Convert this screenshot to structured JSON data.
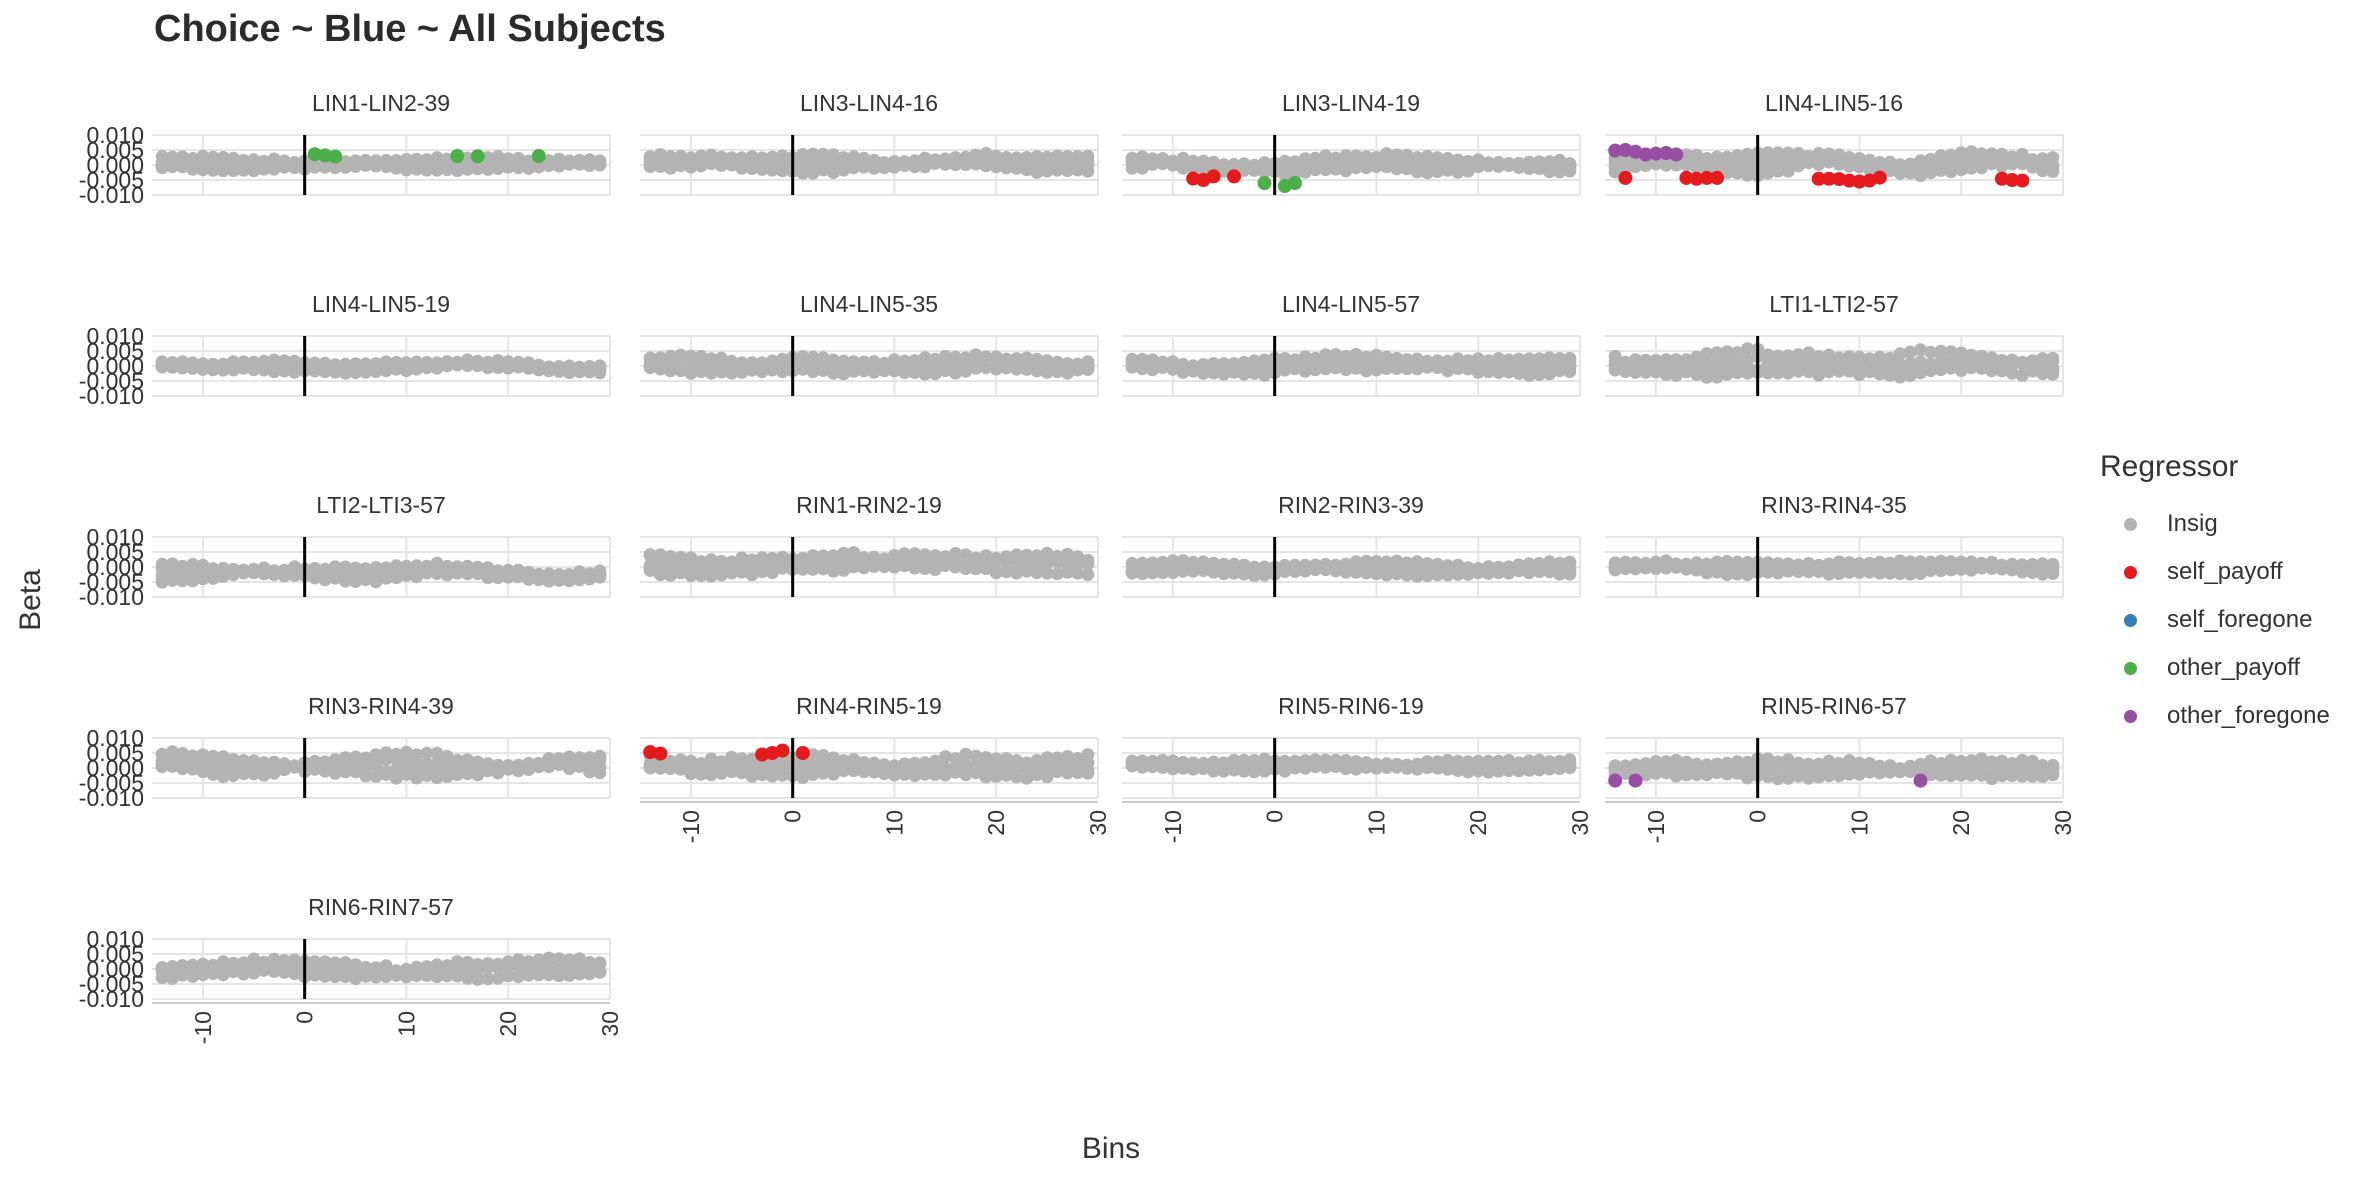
{
  "figure": {
    "title": "Choice ~ Blue ~ All Subjects",
    "xlabel": "Bins",
    "ylabel": "Beta",
    "legend_title": "Regressor"
  },
  "legend": [
    {
      "name": "Insig",
      "color": "#b3b3b3"
    },
    {
      "name": "self_payoff",
      "color": "#e41a1c"
    },
    {
      "name": "self_foregone",
      "color": "#377eb8"
    },
    {
      "name": "other_payoff",
      "color": "#4daf4a"
    },
    {
      "name": "other_foregone",
      "color": "#984ea3"
    }
  ],
  "chart_data": {
    "type": "scatter",
    "layout": "facet-grid-4-columns",
    "x_range": [
      -14,
      29
    ],
    "xlim": [
      -15,
      30
    ],
    "ylim": [
      -0.01,
      0.01
    ],
    "x_ticks": [
      -10,
      0,
      10,
      20,
      30
    ],
    "x_tick_labels": [
      "-10",
      "0",
      "10",
      "20",
      "30"
    ],
    "y_ticks": [
      0.01,
      0.005,
      0,
      -0.005,
      -0.01
    ],
    "y_tick_labels": [
      "0.010",
      "0.005",
      "0.000",
      "-0.005",
      "-0.010"
    ],
    "vline_x": 0,
    "grid": true,
    "legend_position": "right",
    "n_lines_per_panel": 5,
    "panels": [
      {
        "title": "LIN1-LIN2-39",
        "amp": 0.0022,
        "base": 0.0008,
        "sig": [
          {
            "x": 1,
            "y": 0.0036,
            "reg": "other_payoff"
          },
          {
            "x": 2,
            "y": 0.0032,
            "reg": "other_payoff"
          },
          {
            "x": 3,
            "y": 0.0028,
            "reg": "other_payoff"
          },
          {
            "x": 15,
            "y": 0.003,
            "reg": "other_payoff"
          },
          {
            "x": 17,
            "y": 0.0029,
            "reg": "other_payoff"
          },
          {
            "x": 23,
            "y": 0.003,
            "reg": "other_payoff"
          }
        ]
      },
      {
        "title": "LIN3-LIN4-16",
        "amp": 0.0025,
        "base": 0.001,
        "sig": []
      },
      {
        "title": "LIN3-LIN4-19",
        "amp": 0.0028,
        "base": 0.0,
        "sig": [
          {
            "x": -8,
            "y": -0.0045,
            "reg": "self_payoff"
          },
          {
            "x": -7,
            "y": -0.005,
            "reg": "self_payoff"
          },
          {
            "x": -6,
            "y": -0.0038,
            "reg": "self_payoff"
          },
          {
            "x": -4,
            "y": -0.0038,
            "reg": "self_payoff"
          },
          {
            "x": -1,
            "y": -0.006,
            "reg": "other_payoff"
          },
          {
            "x": 1,
            "y": -0.007,
            "reg": "other_payoff"
          },
          {
            "x": 2,
            "y": -0.006,
            "reg": "other_payoff"
          }
        ]
      },
      {
        "title": "LIN4-LIN5-16",
        "amp": 0.0033,
        "base": 0.0,
        "sig": [
          {
            "x": -14,
            "y": 0.0048,
            "reg": "other_foregone"
          },
          {
            "x": -13,
            "y": 0.005,
            "reg": "other_foregone"
          },
          {
            "x": -12,
            "y": 0.0044,
            "reg": "other_foregone"
          },
          {
            "x": -11,
            "y": 0.0035,
            "reg": "other_foregone"
          },
          {
            "x": -10,
            "y": 0.0038,
            "reg": "other_foregone"
          },
          {
            "x": -9,
            "y": 0.004,
            "reg": "other_foregone"
          },
          {
            "x": -8,
            "y": 0.0035,
            "reg": "other_foregone"
          },
          {
            "x": -13,
            "y": -0.0043,
            "reg": "self_payoff"
          },
          {
            "x": -7,
            "y": -0.0043,
            "reg": "self_payoff"
          },
          {
            "x": -6,
            "y": -0.0046,
            "reg": "self_payoff"
          },
          {
            "x": -5,
            "y": -0.0043,
            "reg": "self_payoff"
          },
          {
            "x": -4,
            "y": -0.0043,
            "reg": "self_payoff"
          },
          {
            "x": 6,
            "y": -0.0046,
            "reg": "self_payoff"
          },
          {
            "x": 7,
            "y": -0.0046,
            "reg": "self_payoff"
          },
          {
            "x": 8,
            "y": -0.0047,
            "reg": "self_payoff"
          },
          {
            "x": 9,
            "y": -0.0052,
            "reg": "self_payoff"
          },
          {
            "x": 10,
            "y": -0.0055,
            "reg": "self_payoff"
          },
          {
            "x": 11,
            "y": -0.0052,
            "reg": "self_payoff"
          },
          {
            "x": 12,
            "y": -0.0042,
            "reg": "self_payoff"
          },
          {
            "x": 24,
            "y": -0.0046,
            "reg": "self_payoff"
          },
          {
            "x": 25,
            "y": -0.005,
            "reg": "self_payoff"
          },
          {
            "x": 26,
            "y": -0.0052,
            "reg": "self_payoff"
          }
        ]
      },
      {
        "title": "LIN4-LIN5-19",
        "amp": 0.0018,
        "base": 0.0,
        "sig": []
      },
      {
        "title": "LIN4-LIN5-35",
        "amp": 0.0025,
        "base": 0.0005,
        "sig": []
      },
      {
        "title": "LIN4-LIN5-57",
        "amp": 0.0028,
        "base": 0.0,
        "sig": []
      },
      {
        "title": "LTI1-LTI2-57",
        "amp": 0.0035,
        "base": 0.0008,
        "sig": []
      },
      {
        "title": "LTI2-LTI3-57",
        "amp": 0.0025,
        "base": -0.0015,
        "sig": []
      },
      {
        "title": "RIN1-RIN2-19",
        "amp": 0.003,
        "base": 0.0008,
        "sig": []
      },
      {
        "title": "RIN2-RIN3-39",
        "amp": 0.0018,
        "base": -0.0005,
        "sig": []
      },
      {
        "title": "RIN3-RIN4-35",
        "amp": 0.0018,
        "base": -0.0003,
        "sig": []
      },
      {
        "title": "RIN3-RIN4-39",
        "amp": 0.0032,
        "base": 0.001,
        "sig": []
      },
      {
        "title": "RIN4-RIN5-19",
        "amp": 0.003,
        "base": 0.0005,
        "sig": [
          {
            "x": -14,
            "y": 0.0053,
            "reg": "self_payoff"
          },
          {
            "x": -13,
            "y": 0.0048,
            "reg": "self_payoff"
          },
          {
            "x": -3,
            "y": 0.0045,
            "reg": "self_payoff"
          },
          {
            "x": -2,
            "y": 0.005,
            "reg": "self_payoff"
          },
          {
            "x": -1,
            "y": 0.0058,
            "reg": "self_payoff"
          },
          {
            "x": 1,
            "y": 0.005,
            "reg": "self_payoff"
          }
        ]
      },
      {
        "title": "RIN5-RIN6-19",
        "amp": 0.0018,
        "base": 0.001,
        "sig": []
      },
      {
        "title": "RIN5-RIN6-57",
        "amp": 0.0028,
        "base": 0.0,
        "sig": [
          {
            "x": -14,
            "y": -0.0042,
            "reg": "other_foregone"
          },
          {
            "x": -12,
            "y": -0.0042,
            "reg": "other_foregone"
          },
          {
            "x": 16,
            "y": -0.0042,
            "reg": "other_foregone"
          }
        ]
      },
      {
        "title": "RIN6-RIN7-57",
        "amp": 0.003,
        "base": -0.0005,
        "sig": []
      }
    ]
  }
}
